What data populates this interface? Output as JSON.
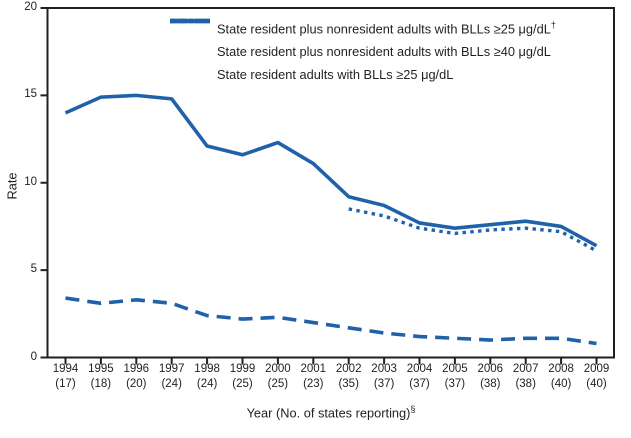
{
  "figure": {
    "ylabel": "Rate",
    "xlabel_text": "Year (No. of states reporting)",
    "xlabel_sup": "§"
  },
  "legend": {
    "items": [
      {
        "style": "solid",
        "label": "State resident plus nonresident adults with BLLs ≥25 μg/dL",
        "sup": "†"
      },
      {
        "style": "dashed",
        "label": "State resident plus nonresident adults with BLLs ≥40 μg/dL",
        "sup": ""
      },
      {
        "style": "dotted",
        "label": "State resident adults with BLLs ≥25 μg/dL",
        "sup": ""
      }
    ]
  },
  "chart_data": {
    "type": "line",
    "title": "",
    "xlabel": "Year (No. of states reporting)§",
    "ylabel": "Rate",
    "ylim": [
      0,
      20
    ],
    "yticks": [
      0,
      5,
      10,
      15,
      20
    ],
    "x": [
      1994,
      1995,
      1996,
      1997,
      1998,
      1999,
      2000,
      2001,
      2002,
      2003,
      2004,
      2005,
      2006,
      2007,
      2008,
      2009
    ],
    "states_reporting": [
      17,
      18,
      20,
      24,
      24,
      25,
      25,
      23,
      35,
      37,
      37,
      37,
      38,
      38,
      40,
      40
    ],
    "series": [
      {
        "name": "State resident plus nonresident adults with BLLs ≥25 μg/dL†",
        "style": "solid",
        "values": [
          14.0,
          14.9,
          15.0,
          14.8,
          12.1,
          11.6,
          12.3,
          11.1,
          9.2,
          8.7,
          7.7,
          7.4,
          7.6,
          7.8,
          7.5,
          6.4
        ]
      },
      {
        "name": "State resident plus nonresident adults with BLLs ≥40 μg/dL",
        "style": "dashed",
        "values": [
          3.4,
          3.1,
          3.3,
          3.1,
          2.4,
          2.2,
          2.3,
          2.0,
          1.7,
          1.4,
          1.2,
          1.1,
          1.0,
          1.1,
          1.1,
          0.8
        ]
      },
      {
        "name": "State resident adults with BLLs ≥25 μg/dL",
        "style": "dotted",
        "values": [
          null,
          null,
          null,
          null,
          null,
          null,
          null,
          null,
          8.5,
          8.1,
          7.4,
          7.1,
          7.3,
          7.4,
          7.2,
          6.1
        ]
      }
    ],
    "legend_position": "top-left",
    "grid": false,
    "colors": {
      "line": "#2062a9",
      "text": "#231f20",
      "axis": "#231f20"
    }
  }
}
